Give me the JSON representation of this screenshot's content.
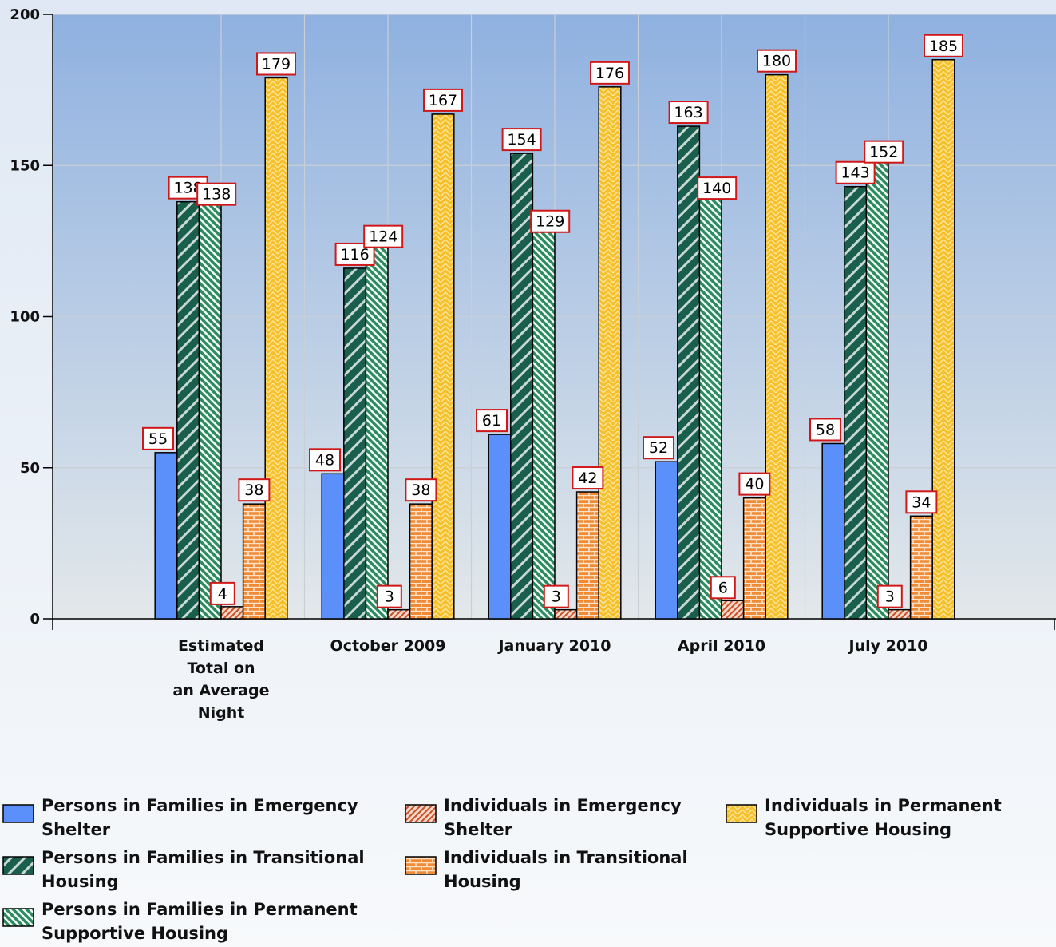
{
  "chart_data": {
    "type": "bar",
    "title": "",
    "xlabel": "",
    "ylabel": "",
    "ylim": [
      0,
      200
    ],
    "yticks": [
      0,
      50,
      100,
      150,
      200
    ],
    "grid": true,
    "legend_position": "bottom",
    "categories": [
      "Estimated Total on an Average Night",
      "October 2009",
      "January 2010",
      "April 2010",
      "July 2010"
    ],
    "category_label_lines": [
      [
        "Estimated",
        "Total on",
        "an Average",
        "Night"
      ],
      [
        "October 2009"
      ],
      [
        "January 2010"
      ],
      [
        "April 2010"
      ],
      [
        "July 2010"
      ]
    ],
    "series": [
      {
        "name": "Persons in Families in Emergency Shelter",
        "legend_lines": [
          "Persons in Families in Emergency",
          "Shelter"
        ],
        "values": [
          55,
          48,
          61,
          52,
          58
        ],
        "color": "#5b8ff9",
        "pattern": "solid"
      },
      {
        "name": "Persons in Families in Transitional Housing",
        "legend_lines": [
          "Persons in Families in Transitional",
          "Housing"
        ],
        "values": [
          138,
          116,
          154,
          163,
          143
        ],
        "color": "#1a5e4e",
        "pattern": "diag-wide"
      },
      {
        "name": "Persons in Families in Permanent Supportive Housing",
        "legend_lines": [
          "Persons in Families in Permanent",
          "Supportive Housing"
        ],
        "values": [
          138,
          124,
          129,
          140,
          152
        ],
        "color": "#2f8a62",
        "pattern": "diag-fine"
      },
      {
        "name": "Individuals in Emergency Shelter",
        "legend_lines": [
          "Individuals in Emergency",
          "Shelter"
        ],
        "values": [
          4,
          3,
          3,
          6,
          3
        ],
        "color": "#d9643a",
        "pattern": "diag-red"
      },
      {
        "name": "Individuals in Transitional Housing",
        "legend_lines": [
          "Individuals in Transitional",
          "Housing"
        ],
        "values": [
          38,
          38,
          42,
          40,
          34
        ],
        "color": "#f0903a",
        "pattern": "brick"
      },
      {
        "name": "Individuals in Permanent Supportive Housing",
        "legend_lines": [
          "Individuals in Permanent",
          "Supportive Housing"
        ],
        "values": [
          179,
          167,
          176,
          180,
          185
        ],
        "color": "#f5c02a",
        "pattern": "zigzag"
      }
    ],
    "colors": {
      "plot_top": "#8fb1e0",
      "plot_bottom": "#e3e8ea",
      "label_border": "#d01818",
      "bar_outline": "#000000"
    }
  }
}
